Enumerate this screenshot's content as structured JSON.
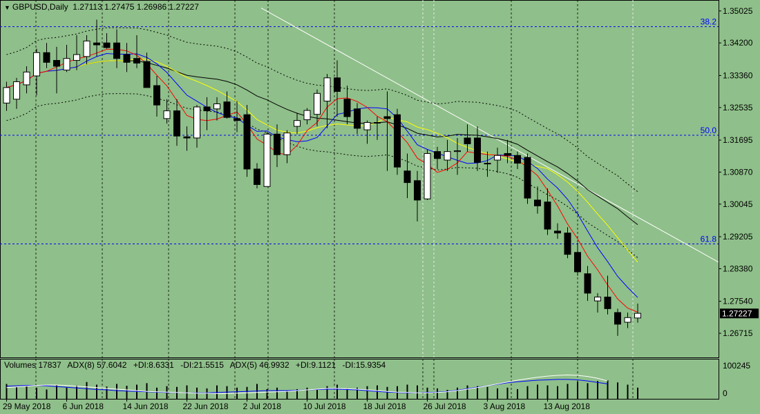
{
  "header": {
    "symbol": "GBPUSD,Daily",
    "ohlc": "1.27113 1.27475 1.26986 1.27227"
  },
  "subwindow": {
    "volumes": "Volumes 17837",
    "adx8": "ADX(8) 57.6042",
    "di8_plus": "+DI:8.6331",
    "di8_minus": "-DI:21.5515",
    "adx5": "ADX(5) 46.9932",
    "di5_plus": "+DI:9.1121",
    "di5_minus": "-DI:15.9354",
    "scale_top": "100245",
    "scale_bottom": "0"
  },
  "colors": {
    "background": "#8FBF8A",
    "candle": "#000000",
    "bull_fill": "#FFFFFF",
    "bear_fill": "#000000",
    "fib_line": "#0000FF",
    "sma_black": "#000000",
    "sma_yellow": "#FFFF00",
    "sma_blue": "#0000FF",
    "sma_red": "#FF0000",
    "trendline": "#FFFFFF",
    "price_tag_bg": "#000000"
  },
  "chart_data": {
    "type": "candlestick",
    "y_range": [
      1.262,
      1.352
    ],
    "price_ticks": [
      "1.35025",
      "1.34200",
      "1.33360",
      "1.32535",
      "1.31695",
      "1.30870",
      "1.30045",
      "1.29205",
      "1.28380",
      "1.27540",
      "1.26715"
    ],
    "current_price": "1.27227",
    "date_labels": [
      "29 May 2018",
      "6 Jun 2018",
      "14 Jun 2018",
      "22 Jun 2018",
      "2 Jul 2018",
      "10 Jul 2018",
      "18 Jul 2018",
      "26 Jul 2018",
      "3 Aug 2018",
      "13 Aug 2018"
    ],
    "date_label_index": [
      0,
      6,
      12,
      18,
      24,
      30,
      36,
      42,
      48,
      54
    ],
    "fib_levels": [
      {
        "label": "38.2",
        "price": 1.3462
      },
      {
        "label": "50.0",
        "price": 1.3182
      },
      {
        "label": "61.8",
        "price": 1.2902
      }
    ],
    "candles": [
      {
        "o": 1.3265,
        "h": 1.332,
        "l": 1.3245,
        "c": 1.3305
      },
      {
        "o": 1.3275,
        "h": 1.333,
        "l": 1.325,
        "c": 1.332
      },
      {
        "o": 1.3312,
        "h": 1.336,
        "l": 1.329,
        "c": 1.3345
      },
      {
        "o": 1.3335,
        "h": 1.3405,
        "l": 1.3285,
        "c": 1.3395
      },
      {
        "o": 1.3395,
        "h": 1.342,
        "l": 1.3355,
        "c": 1.337
      },
      {
        "o": 1.3375,
        "h": 1.341,
        "l": 1.329,
        "c": 1.336
      },
      {
        "o": 1.335,
        "h": 1.3415,
        "l": 1.3345,
        "c": 1.338
      },
      {
        "o": 1.3375,
        "h": 1.344,
        "l": 1.335,
        "c": 1.339
      },
      {
        "o": 1.3385,
        "h": 1.344,
        "l": 1.3365,
        "c": 1.3425
      },
      {
        "o": 1.342,
        "h": 1.348,
        "l": 1.3385,
        "c": 1.3415
      },
      {
        "o": 1.342,
        "h": 1.3445,
        "l": 1.3405,
        "c": 1.3408
      },
      {
        "o": 1.342,
        "h": 1.3455,
        "l": 1.3355,
        "c": 1.338
      },
      {
        "o": 1.339,
        "h": 1.342,
        "l": 1.3345,
        "c": 1.337
      },
      {
        "o": 1.338,
        "h": 1.344,
        "l": 1.3355,
        "c": 1.3368
      },
      {
        "o": 1.3372,
        "h": 1.3395,
        "l": 1.331,
        "c": 1.3305
      },
      {
        "o": 1.331,
        "h": 1.3335,
        "l": 1.323,
        "c": 1.326
      },
      {
        "o": 1.3225,
        "h": 1.3275,
        "l": 1.3212,
        "c": 1.3245
      },
      {
        "o": 1.3245,
        "h": 1.3275,
        "l": 1.3155,
        "c": 1.318
      },
      {
        "o": 1.3178,
        "h": 1.3205,
        "l": 1.3142,
        "c": 1.3175
      },
      {
        "o": 1.3175,
        "h": 1.326,
        "l": 1.315,
        "c": 1.3255
      },
      {
        "o": 1.3255,
        "h": 1.328,
        "l": 1.3195,
        "c": 1.3245
      },
      {
        "o": 1.325,
        "h": 1.328,
        "l": 1.322,
        "c": 1.3263
      },
      {
        "o": 1.3268,
        "h": 1.3295,
        "l": 1.3225,
        "c": 1.3228
      },
      {
        "o": 1.3225,
        "h": 1.327,
        "l": 1.319,
        "c": 1.322
      },
      {
        "o": 1.3235,
        "h": 1.326,
        "l": 1.3075,
        "c": 1.3095
      },
      {
        "o": 1.3095,
        "h": 1.311,
        "l": 1.3045,
        "c": 1.3055
      },
      {
        "o": 1.305,
        "h": 1.319,
        "l": 1.305,
        "c": 1.3185
      },
      {
        "o": 1.3185,
        "h": 1.321,
        "l": 1.31,
        "c": 1.3132
      },
      {
        "o": 1.3132,
        "h": 1.3195,
        "l": 1.311,
        "c": 1.3188
      },
      {
        "o": 1.3205,
        "h": 1.324,
        "l": 1.3185,
        "c": 1.322
      },
      {
        "o": 1.3222,
        "h": 1.3252,
        "l": 1.321,
        "c": 1.3246
      },
      {
        "o": 1.3236,
        "h": 1.33,
        "l": 1.3205,
        "c": 1.329
      },
      {
        "o": 1.327,
        "h": 1.334,
        "l": 1.32,
        "c": 1.333
      },
      {
        "o": 1.333,
        "h": 1.3375,
        "l": 1.323,
        "c": 1.3295
      },
      {
        "o": 1.3275,
        "h": 1.331,
        "l": 1.321,
        "c": 1.323
      },
      {
        "o": 1.325,
        "h": 1.3265,
        "l": 1.3185,
        "c": 1.32
      },
      {
        "o": 1.3196,
        "h": 1.322,
        "l": 1.316,
        "c": 1.3215
      },
      {
        "o": 1.3215,
        "h": 1.323,
        "l": 1.317,
        "c": 1.3215
      },
      {
        "o": 1.323,
        "h": 1.3295,
        "l": 1.309,
        "c": 1.3225
      },
      {
        "o": 1.3235,
        "h": 1.325,
        "l": 1.308,
        "c": 1.31
      },
      {
        "o": 1.309,
        "h": 1.3135,
        "l": 1.302,
        "c": 1.306
      },
      {
        "o": 1.3065,
        "h": 1.309,
        "l": 1.296,
        "c": 1.3015
      },
      {
        "o": 1.3018,
        "h": 1.3145,
        "l": 1.3015,
        "c": 1.3135
      },
      {
        "o": 1.314,
        "h": 1.3152,
        "l": 1.3095,
        "c": 1.3122
      },
      {
        "o": 1.3118,
        "h": 1.317,
        "l": 1.309,
        "c": 1.314
      },
      {
        "o": 1.314,
        "h": 1.3175,
        "l": 1.308,
        "c": 1.3142
      },
      {
        "o": 1.3175,
        "h": 1.321,
        "l": 1.314,
        "c": 1.316
      },
      {
        "o": 1.3175,
        "h": 1.3205,
        "l": 1.309,
        "c": 1.3112
      },
      {
        "o": 1.311,
        "h": 1.314,
        "l": 1.3075,
        "c": 1.3108
      },
      {
        "o": 1.3118,
        "h": 1.315,
        "l": 1.3085,
        "c": 1.313
      },
      {
        "o": 1.3135,
        "h": 1.317,
        "l": 1.311,
        "c": 1.313
      },
      {
        "o": 1.313,
        "h": 1.314,
        "l": 1.3095,
        "c": 1.311
      },
      {
        "o": 1.3125,
        "h": 1.3135,
        "l": 1.3005,
        "c": 1.302
      },
      {
        "o": 1.3015,
        "h": 1.305,
        "l": 1.298,
        "c": 1.3
      },
      {
        "o": 1.301,
        "h": 1.3045,
        "l": 1.2925,
        "c": 1.294
      },
      {
        "o": 1.2935,
        "h": 1.2955,
        "l": 1.2915,
        "c": 1.293
      },
      {
        "o": 1.293,
        "h": 1.2945,
        "l": 1.2865,
        "c": 1.2875
      },
      {
        "o": 1.288,
        "h": 1.2905,
        "l": 1.282,
        "c": 1.283
      },
      {
        "o": 1.2825,
        "h": 1.2845,
        "l": 1.2755,
        "c": 1.2775
      },
      {
        "o": 1.2755,
        "h": 1.2775,
        "l": 1.2725,
        "c": 1.2765
      },
      {
        "o": 1.2765,
        "h": 1.282,
        "l": 1.272,
        "c": 1.2735
      },
      {
        "o": 1.2725,
        "h": 1.2735,
        "l": 1.2665,
        "c": 1.2695
      },
      {
        "o": 1.27,
        "h": 1.2725,
        "l": 1.2685,
        "c": 1.2712
      },
      {
        "o": 1.2711,
        "h": 1.2748,
        "l": 1.2699,
        "c": 1.2723
      }
    ],
    "volume": [
      40,
      32,
      34,
      30,
      25,
      38,
      30,
      36,
      45,
      38,
      33,
      40,
      35,
      38,
      42,
      30,
      34,
      32,
      36,
      30,
      28,
      36,
      34,
      30,
      32,
      40,
      26,
      30,
      22,
      26,
      30,
      24,
      34,
      38,
      28,
      30,
      34,
      36,
      32,
      34,
      38,
      36,
      30,
      28,
      24,
      30,
      36,
      34,
      32,
      28,
      30,
      26,
      34,
      38,
      36,
      34,
      40,
      46,
      42,
      48,
      50,
      44,
      38,
      30
    ],
    "adx_main": [
      34,
      35,
      36,
      36,
      35,
      33,
      31,
      29,
      27,
      25,
      24,
      22,
      21,
      20,
      19,
      18,
      17,
      17,
      16,
      16,
      16,
      17,
      18,
      19,
      20,
      21,
      22,
      22,
      22,
      23,
      24,
      25,
      26,
      26,
      25,
      24,
      22,
      20,
      18,
      17,
      16,
      16,
      17,
      18,
      20,
      23,
      27,
      31,
      35,
      39,
      43,
      46,
      48,
      50,
      51,
      52,
      52,
      51,
      48,
      44,
      40
    ],
    "adx_signal": [
      30,
      32,
      34,
      36,
      37,
      37,
      36,
      34,
      32,
      30,
      28,
      26,
      24,
      22,
      20,
      19,
      18,
      17,
      16,
      15,
      15,
      14,
      14,
      15,
      16,
      17,
      18,
      19,
      20,
      22,
      24,
      26,
      28,
      28,
      27,
      26,
      24,
      22,
      20,
      18,
      17,
      16,
      16,
      17,
      19,
      22,
      26,
      30,
      35,
      40,
      45,
      50,
      54,
      58,
      61,
      63,
      64,
      63,
      60,
      55,
      48
    ]
  }
}
